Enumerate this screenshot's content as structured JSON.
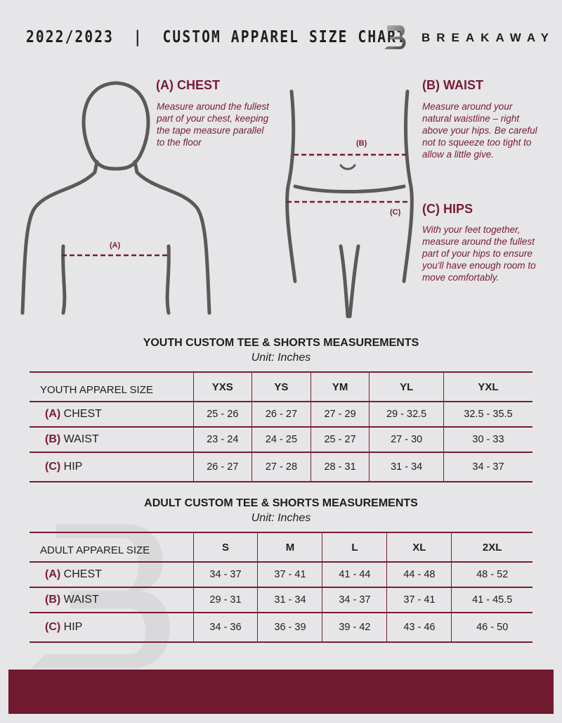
{
  "header": {
    "title": "2022/2023  |  CUSTOM APPAREL SIZE CHART",
    "brand": "BREAKAWAY"
  },
  "chest": {
    "heading": "(A) CHEST",
    "text": "Measure around the fullest part of your chest, keeping the tape measure parallel to the floor",
    "marker": "(A)"
  },
  "waist": {
    "heading": "(B) WAIST",
    "text": "Measure around your natural waistline – right above your hips. Be careful not to squeeze too tight to allow a little give.",
    "marker": "(B)"
  },
  "hips": {
    "heading": "(C) HIPS",
    "text": "With your feet together, measure around the fullest part of your hips to ensure you'll have enough room to move comfortably.",
    "marker": "(C)"
  },
  "accent": "#7a1b33",
  "youth": {
    "title": "YOUTH CUSTOM TEE & SHORTS MEASUREMENTS",
    "unit": "Unit: Inches",
    "size_label": "YOUTH APPAREL SIZE",
    "sizes": [
      "YXS",
      "YS",
      "YM",
      "YL",
      "YXL"
    ],
    "rows": [
      {
        "letter": "(A)",
        "name": "CHEST",
        "values": [
          "25 - 26",
          "26 - 27",
          "27 - 29",
          "29 - 32.5",
          "32.5 - 35.5"
        ]
      },
      {
        "letter": "(B)",
        "name": "WAIST",
        "values": [
          "23 - 24",
          "24 - 25",
          "25 - 27",
          "27 - 30",
          "30 - 33"
        ]
      },
      {
        "letter": "(C)",
        "name": "HIP",
        "values": [
          "26 - 27",
          "27 - 28",
          "28 - 31",
          "31 - 34",
          "34 - 37"
        ]
      }
    ]
  },
  "adult": {
    "title": "ADULT CUSTOM TEE & SHORTS MEASUREMENTS",
    "unit": "Unit: Inches",
    "size_label": "ADULT APPAREL SIZE",
    "sizes": [
      "S",
      "M",
      "L",
      "XL",
      "2XL"
    ],
    "rows": [
      {
        "letter": "(A)",
        "name": "CHEST",
        "values": [
          "34 - 37",
          "37 - 41",
          "41 - 44",
          "44 - 48",
          "48 - 52"
        ]
      },
      {
        "letter": "(B)",
        "name": "WAIST",
        "values": [
          "29 - 31",
          "31 - 34",
          "34 - 37",
          "37 - 41",
          "41 - 45.5"
        ]
      },
      {
        "letter": "(C)",
        "name": "HIP",
        "values": [
          "34 - 36",
          "36 - 39",
          "39 - 42",
          "43 - 46",
          "46 - 50"
        ]
      }
    ]
  }
}
